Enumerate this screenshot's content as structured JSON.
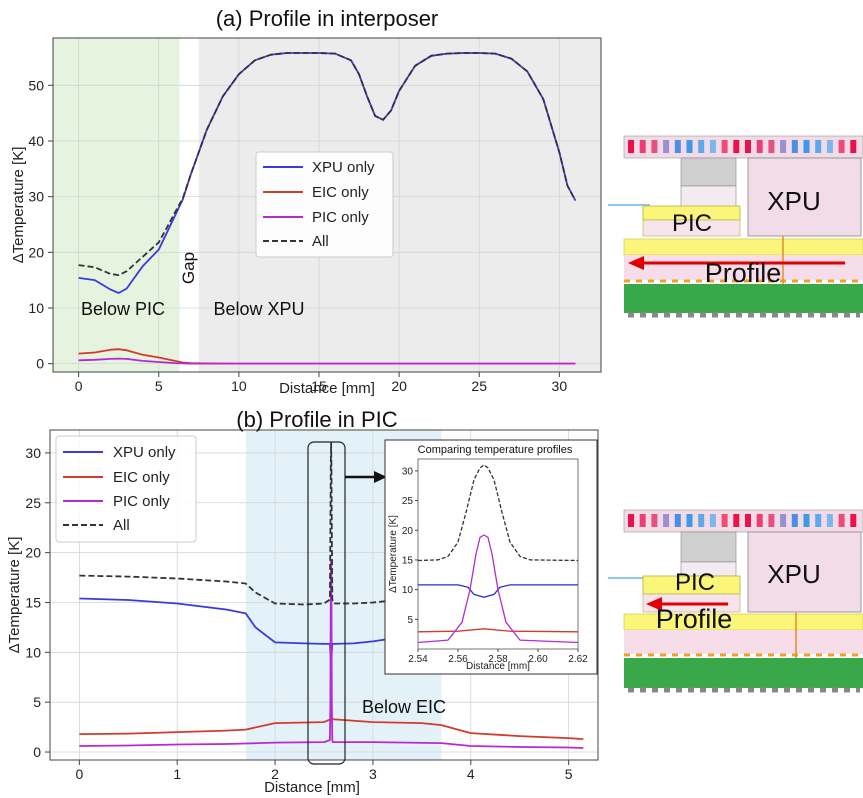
{
  "chart_data": [
    {
      "type": "line",
      "title": "(a) Profile in interposer",
      "xlabel": "Distance [mm]",
      "ylabel": "ΔTemperature [K]",
      "xlim": [
        -1.6,
        32.6
      ],
      "ylim": [
        -1.5,
        58.5
      ],
      "xticks": [
        0,
        5,
        10,
        15,
        20,
        25,
        30
      ],
      "yticks": [
        0,
        10,
        20,
        30,
        40,
        50
      ],
      "grid": true,
      "legend_position": "center",
      "regions": [
        {
          "label": "Below PIC",
          "x": [
            -1.6,
            6.3
          ],
          "color": "#e5f3df"
        },
        {
          "label": "Gap",
          "x": [
            6.3,
            7.5
          ],
          "color": "#ffffff"
        },
        {
          "label": "Below XPU",
          "x": [
            7.5,
            32.6
          ],
          "color": "#ececec"
        }
      ],
      "series": [
        {
          "name": "XPU only",
          "color": "#3a3ae0",
          "dash": false,
          "x": [
            0,
            1,
            2,
            2.5,
            3,
            4,
            5,
            5.5,
            6,
            6.5,
            7,
            8,
            9,
            10,
            11,
            12,
            13,
            14,
            15,
            16,
            17,
            17.5,
            18,
            18.5,
            19,
            19.5,
            20,
            21,
            22,
            23,
            24,
            25,
            26,
            27,
            28,
            29,
            30,
            30.5,
            31
          ],
          "y": [
            15.4,
            15.0,
            13.3,
            12.7,
            13.5,
            17.5,
            20.5,
            23.5,
            26.5,
            29.5,
            34,
            42,
            48,
            52,
            54.5,
            55.5,
            55.8,
            55.8,
            55.8,
            55.7,
            54.5,
            52,
            48,
            44.5,
            43.8,
            45.5,
            49,
            53.5,
            55.3,
            55.7,
            55.8,
            55.8,
            55.7,
            54.8,
            52.5,
            47.5,
            38,
            32,
            29.3
          ]
        },
        {
          "name": "EIC only",
          "color": "#d43a2a",
          "dash": false,
          "x": [
            0,
            1,
            2,
            2.5,
            3,
            4,
            5,
            6,
            6.5,
            7,
            8,
            10,
            15,
            20,
            25,
            31
          ],
          "y": [
            1.8,
            2.0,
            2.5,
            2.6,
            2.4,
            1.6,
            1.1,
            0.5,
            0.2,
            0.1,
            0.05,
            0,
            0,
            0,
            0,
            0
          ]
        },
        {
          "name": "PIC only",
          "color": "#b52bd1",
          "dash": false,
          "x": [
            0,
            1,
            2,
            2.5,
            3,
            4,
            5,
            6,
            6.5,
            7,
            8,
            10,
            15,
            20,
            25,
            31
          ],
          "y": [
            0.6,
            0.7,
            0.85,
            0.9,
            0.85,
            0.5,
            0.3,
            0.1,
            0.05,
            0,
            0,
            0,
            0,
            0,
            0,
            0
          ]
        },
        {
          "name": "All",
          "color": "#333333",
          "dash": true,
          "x": [
            0,
            1,
            2,
            2.5,
            3,
            4,
            5,
            5.5,
            6,
            6.5,
            7,
            8,
            9,
            10,
            11,
            12,
            13,
            14,
            15,
            16,
            17,
            17.5,
            18,
            18.5,
            19,
            19.5,
            20,
            21,
            22,
            23,
            24,
            25,
            26,
            27,
            28,
            29,
            30,
            30.5,
            31
          ],
          "y": [
            17.7,
            17.3,
            16.1,
            15.9,
            16.6,
            19.2,
            21.8,
            24.4,
            27.1,
            29.7,
            34,
            42,
            48,
            52,
            54.5,
            55.5,
            55.8,
            55.8,
            55.8,
            55.7,
            54.5,
            52,
            48,
            44.5,
            43.8,
            45.5,
            49,
            53.5,
            55.3,
            55.7,
            55.8,
            55.8,
            55.7,
            54.8,
            52.5,
            47.5,
            38,
            32,
            29.3
          ]
        }
      ],
      "annotations": [
        "Below PIC",
        "Gap",
        "Below XPU"
      ]
    },
    {
      "type": "line",
      "title": "(b) Profile in PIC",
      "xlabel": "Distance [mm]",
      "ylabel": "ΔTemperature [K]",
      "xlim": [
        -0.3,
        5.3
      ],
      "ylim": [
        -0.8,
        32.3
      ],
      "xticks": [
        0,
        1,
        2,
        3,
        4,
        5
      ],
      "yticks": [
        0,
        5,
        10,
        15,
        20,
        25,
        30
      ],
      "grid": true,
      "legend_position": "top-left",
      "regions": [
        {
          "label": "Below EIC",
          "x": [
            1.7,
            3.7
          ],
          "color": "#e3f1f9"
        }
      ],
      "series": [
        {
          "name": "XPU only",
          "color": "#3a3ae0",
          "dash": false,
          "x": [
            0,
            0.5,
            1,
            1.5,
            1.7,
            1.8,
            2,
            2.3,
            2.5,
            2.56,
            2.565,
            2.573,
            2.58,
            2.585,
            2.6,
            2.8,
            3,
            3.2,
            3.3
          ],
          "y": [
            15.4,
            15.25,
            14.9,
            14.3,
            13.9,
            12.5,
            11.0,
            10.9,
            10.85,
            10.85,
            10.0,
            8.7,
            10.0,
            10.85,
            10.85,
            10.9,
            11.1,
            11.4,
            11.7
          ]
        },
        {
          "name": "EIC only",
          "color": "#d43a2a",
          "dash": false,
          "x": [
            0,
            0.5,
            1,
            1.5,
            1.7,
            2,
            2.5,
            2.573,
            3,
            3.5,
            3.7,
            4,
            4.5,
            5,
            5.15
          ],
          "y": [
            1.8,
            1.85,
            2.0,
            2.15,
            2.25,
            2.9,
            3.0,
            3.3,
            3.0,
            2.9,
            2.7,
            1.9,
            1.6,
            1.4,
            1.3
          ]
        },
        {
          "name": "PIC only",
          "color": "#b52bd1",
          "dash": false,
          "x": [
            0,
            0.5,
            1,
            1.5,
            1.7,
            2,
            2.5,
            2.56,
            2.565,
            2.57,
            2.573,
            2.576,
            2.58,
            2.585,
            2.59,
            3,
            3.7,
            4,
            4.5,
            5,
            5.15
          ],
          "y": [
            0.6,
            0.65,
            0.75,
            0.8,
            0.85,
            0.95,
            1.0,
            1.2,
            5,
            17,
            19.2,
            17,
            5,
            1.2,
            1.0,
            1.0,
            0.9,
            0.6,
            0.5,
            0.45,
            0.4
          ]
        },
        {
          "name": "All",
          "color": "#333333",
          "dash": true,
          "x": [
            0,
            0.5,
            1,
            1.5,
            1.7,
            1.8,
            2,
            2.3,
            2.5,
            2.56,
            2.565,
            2.57,
            2.573,
            2.576,
            2.58,
            2.585,
            2.6,
            2.8,
            3,
            3.2,
            3.3
          ],
          "y": [
            17.7,
            17.6,
            17.4,
            17.1,
            16.9,
            16.0,
            14.9,
            14.8,
            14.9,
            15.3,
            22,
            29,
            31.0,
            29,
            22,
            15.3,
            14.9,
            14.9,
            15.0,
            15.2,
            15.4
          ]
        }
      ],
      "annotations": [
        "Below EIC"
      ],
      "inset": {
        "title": "Comparing temperature profiles",
        "xlabel": "Distance [mm]",
        "ylabel": "ΔTemperature [K]",
        "xlim": [
          2.54,
          2.62
        ],
        "ylim": [
          0,
          32
        ],
        "xticks": [
          "2.54",
          "2.56",
          "2.58",
          "2.60",
          "2.62"
        ],
        "yticks": [
          5,
          10,
          15,
          20,
          25,
          30
        ],
        "series": [
          {
            "name": "XPU only",
            "color": "#2a2ad8",
            "dash": false,
            "x": [
              2.54,
              2.56,
              2.565,
              2.568,
              2.573,
              2.578,
              2.581,
              2.586,
              2.62
            ],
            "y": [
              10.8,
              10.8,
              10.4,
              9.2,
              8.7,
              9.2,
              10.4,
              10.8,
              10.8
            ]
          },
          {
            "name": "EIC only",
            "color": "#d43a2a",
            "dash": false,
            "x": [
              2.54,
              2.56,
              2.573,
              2.586,
              2.62
            ],
            "y": [
              2.9,
              3.0,
              3.4,
              3.0,
              2.9
            ]
          },
          {
            "name": "PIC only",
            "color": "#b52bd1",
            "dash": false,
            "x": [
              2.54,
              2.555,
              2.562,
              2.566,
              2.569,
              2.571,
              2.573,
              2.575,
              2.577,
              2.58,
              2.584,
              2.591,
              2.62
            ],
            "y": [
              1.1,
              1.5,
              4.5,
              10,
              16,
              18.8,
              19.2,
              18.8,
              16,
              10,
              4.5,
              1.5,
              1.1
            ]
          },
          {
            "name": "All",
            "color": "#333333",
            "dash": true,
            "x": [
              2.54,
              2.55,
              2.555,
              2.56,
              2.564,
              2.568,
              2.571,
              2.573,
              2.575,
              2.578,
              2.582,
              2.586,
              2.591,
              2.596,
              2.62
            ],
            "y": [
              14.9,
              15.0,
              15.6,
              18,
              23,
              28.5,
              30.5,
              31.0,
              30.5,
              28.5,
              23,
              18,
              15.6,
              15.0,
              14.9
            ]
          }
        ]
      }
    }
  ],
  "diagrams": [
    {
      "chip_labels": [
        "PIC",
        "XPU"
      ],
      "profile_label": "Profile"
    },
    {
      "chip_labels": [
        "PIC",
        "XPU"
      ],
      "profile_label": "Profile"
    }
  ],
  "colors": {
    "heatsink_cells": [
      "#e8134b",
      "#ee3c74",
      "#e85083",
      "#9a8fd0",
      "#4a8fe3",
      "#3d9ae9",
      "#5fa8ea",
      "#7bb7ea",
      "#ef4a7a",
      "#e8134b"
    ],
    "green_board": "#39a84b",
    "yellow_layer": "#fbf67a",
    "pink_layer": "#f6dcea",
    "arrow": "#e00000"
  }
}
